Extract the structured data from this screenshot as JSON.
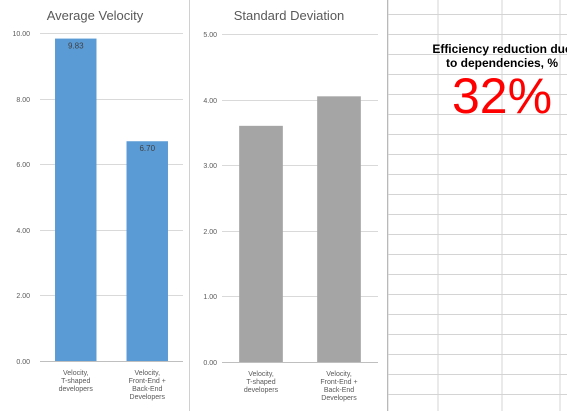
{
  "colors": {
    "velocity_bar": "#5B9BD5",
    "velocity_label_box": "#5B9BD5",
    "stddev_bar": "#A5A5A5",
    "callout_value": "#FF0000",
    "gridline": "#D9D9D9",
    "sheet_gridline": "#D4D4D4"
  },
  "chart_data": [
    {
      "type": "bar",
      "title": "Average Velocity",
      "categories": [
        [
          "Velocity,",
          "T-shaped",
          "developers"
        ],
        [
          "Velocity,",
          "Front-End +",
          "Back-End",
          "Developers"
        ]
      ],
      "values": [
        9.83,
        6.7
      ],
      "data_labels": [
        "9.83",
        "6.70"
      ],
      "yticks": [
        "0.00",
        "2.00",
        "4.00",
        "6.00",
        "8.00",
        "10.00"
      ],
      "ylim": [
        0,
        10
      ],
      "grid": true
    },
    {
      "type": "bar",
      "title": "Standard Deviation",
      "categories": [
        [
          "Velocity,",
          "T-shaped",
          "developers"
        ],
        [
          "Velocity,",
          "Front-End +",
          "Back-End",
          "Developers"
        ]
      ],
      "values": [
        3.6,
        4.05
      ],
      "yticks": [
        "0.00",
        "1.00",
        "2.00",
        "3.00",
        "4.00",
        "5.00"
      ],
      "ylim": [
        0,
        5
      ],
      "grid": true
    }
  ],
  "callout": {
    "label": "Efficiency reduction due to dependencies, %",
    "value": "32%"
  }
}
